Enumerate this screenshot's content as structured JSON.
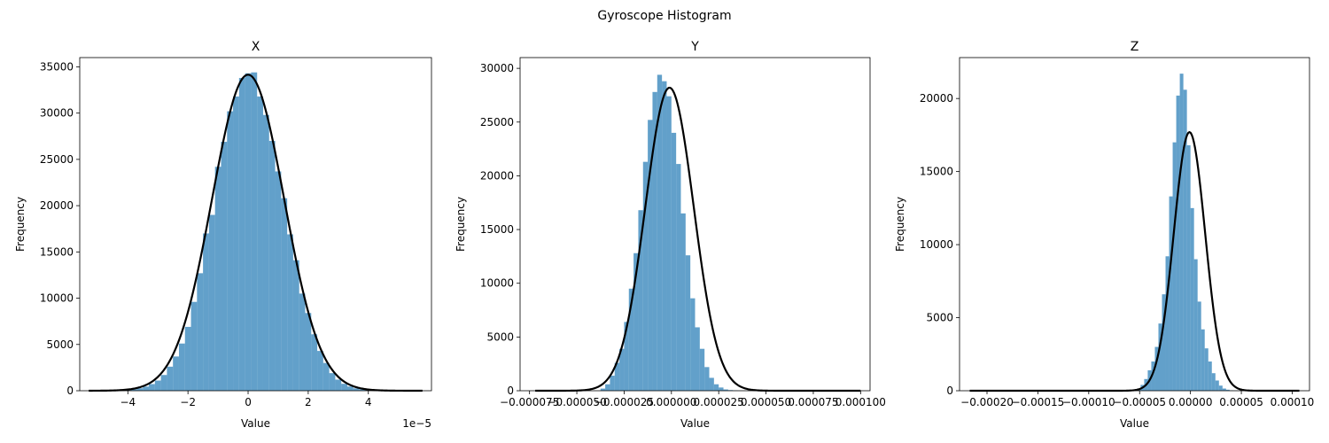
{
  "figure": {
    "title": "Gyroscope Histogram"
  },
  "colors": {
    "bar": "#1f77b4",
    "curve": "#000000"
  },
  "chart_data": [
    {
      "type": "bar",
      "title": "X",
      "xlabel": "Value",
      "ylabel": "Frequency",
      "offset_text": "1e−5",
      "xlim": [
        -5.6,
        6.1
      ],
      "ylim": [
        0,
        36000
      ],
      "xticks": [
        -4,
        -2,
        0,
        2,
        4
      ],
      "xtick_labels": [
        "−4",
        "−2",
        "0",
        "2",
        "4"
      ],
      "yticks": [
        0,
        5000,
        10000,
        15000,
        20000,
        25000,
        30000,
        35000
      ],
      "ytick_labels": [
        "0",
        "5000",
        "10000",
        "15000",
        "20000",
        "25000",
        "30000",
        "35000"
      ],
      "bins": {
        "edges": [
          -5.1,
          -4.9,
          -4.7,
          -4.5,
          -4.3,
          -4.1,
          -3.9,
          -3.7,
          -3.5,
          -3.3,
          -3.1,
          -2.9,
          -2.7,
          -2.5,
          -2.3,
          -2.1,
          -1.9,
          -1.7,
          -1.5,
          -1.3,
          -1.1,
          -0.9,
          -0.7,
          -0.5,
          -0.3,
          -0.1,
          0.1,
          0.3,
          0.5,
          0.7,
          0.9,
          1.1,
          1.3,
          1.5,
          1.7,
          1.9,
          2.1,
          2.3,
          2.5,
          2.7,
          2.9,
          3.1,
          3.3,
          3.5,
          3.7,
          3.9,
          4.1,
          4.3,
          4.5,
          4.7,
          4.9,
          5.1
        ],
        "counts": [
          2,
          5,
          10,
          20,
          40,
          80,
          150,
          270,
          450,
          720,
          1100,
          1700,
          2600,
          3700,
          5100,
          6900,
          9600,
          12700,
          17000,
          19000,
          24200,
          26900,
          30200,
          31800,
          33800,
          34300,
          34400,
          31800,
          29800,
          27000,
          23700,
          20800,
          16900,
          14100,
          10500,
          8400,
          6100,
          4300,
          3000,
          1900,
          1200,
          750,
          460,
          260,
          140,
          70,
          35,
          15,
          7,
          3,
          1
        ]
      },
      "fit": {
        "mean": 0.0,
        "std": 1.2,
        "peak": 34150,
        "range": [
          -5.3,
          5.8
        ]
      }
    },
    {
      "type": "bar",
      "title": "Y",
      "xlabel": "Value",
      "ylabel": "Frequency",
      "xlim": [
        -8e-05,
        0.000105
      ],
      "ylim": [
        0,
        31000
      ],
      "xticks": [
        -7.5e-05,
        -5e-05,
        -2.5e-05,
        0.0,
        2.5e-05,
        5e-05,
        7.5e-05,
        0.0001
      ],
      "xtick_labels": [
        "−0.000075",
        "−0.000050",
        "−0.000025",
        "0.000000",
        "0.000025",
        "0.000050",
        "0.000075",
        "0.000100"
      ],
      "yticks": [
        0,
        5000,
        10000,
        15000,
        20000,
        25000,
        30000
      ],
      "ytick_labels": [
        "0",
        "5000",
        "10000",
        "15000",
        "20000",
        "25000",
        "30000"
      ],
      "bins": {
        "edges": [
          -3.75e-05,
          -3.5e-05,
          -3.25e-05,
          -3e-05,
          -2.75e-05,
          -2.5e-05,
          -2.25e-05,
          -2e-05,
          -1.75e-05,
          -1.5e-05,
          -1.25e-05,
          -1e-05,
          -7.5e-06,
          -5e-06,
          -2.5e-06,
          0.0,
          2.5e-06,
          5e-06,
          7.5e-06,
          1e-05,
          1.25e-05,
          1.5e-05,
          1.75e-05,
          2e-05,
          2.25e-05,
          2.5e-05,
          2.75e-05,
          3e-05,
          3.25e-05,
          3.5e-05,
          3.75e-05,
          4e-05
        ],
        "counts": [
          200,
          600,
          1400,
          2600,
          3900,
          6400,
          9500,
          12800,
          16800,
          21300,
          25200,
          27800,
          29400,
          28800,
          27400,
          24000,
          21100,
          16500,
          12600,
          8600,
          5900,
          3900,
          2200,
          1200,
          600,
          300,
          120,
          60,
          30,
          15,
          5
        ]
      },
      "fit": {
        "mean": -1e-06,
        "std": 1.28e-05,
        "peak": 28200,
        "range": [
          -7.2e-05,
          0.0001
        ]
      }
    },
    {
      "type": "bar",
      "title": "Z",
      "xlabel": "Value",
      "ylabel": "Frequency",
      "xlim": [
        -0.000227,
        0.000117
      ],
      "ylim": [
        0,
        22800
      ],
      "xticks": [
        -0.0002,
        -0.00015,
        -0.0001,
        -5e-05,
        0.0,
        5e-05,
        0.0001
      ],
      "xtick_labels": [
        "−0.00020",
        "−0.00015",
        "−0.00010",
        "−0.00005",
        "0.00000",
        "0.00005",
        "0.00010"
      ],
      "yticks": [
        0,
        5000,
        10000,
        15000,
        20000
      ],
      "ytick_labels": [
        "0",
        "5000",
        "10000",
        "15000",
        "20000"
      ],
      "bins": {
        "edges": [
          -5.25e-05,
          -4.9e-05,
          -4.55e-05,
          -4.2e-05,
          -3.85e-05,
          -3.5e-05,
          -3.15e-05,
          -2.8e-05,
          -2.45e-05,
          -2.1e-05,
          -1.75e-05,
          -1.4e-05,
          -1.05e-05,
          -7e-06,
          -3.5e-06,
          0.0,
          3.5e-06,
          7e-06,
          1.05e-05,
          1.4e-05,
          1.75e-05,
          2.1e-05,
          2.45e-05,
          2.8e-05,
          3.15e-05,
          3.5e-05,
          3.85e-05,
          4.2e-05,
          4.55e-05,
          4.9e-05,
          5.25e-05
        ],
        "counts": [
          150,
          400,
          800,
          1400,
          2000,
          3000,
          4600,
          6600,
          9200,
          13300,
          17000,
          20200,
          21700,
          20600,
          16800,
          12500,
          9000,
          6100,
          4200,
          2900,
          2000,
          1200,
          700,
          350,
          150,
          70,
          30,
          10,
          5,
          2
        ]
      },
      "fit": {
        "mean": -1e-06,
        "std": 1.55e-05,
        "peak": 17700,
        "range": [
          -0.000217,
          0.000107
        ]
      }
    }
  ]
}
